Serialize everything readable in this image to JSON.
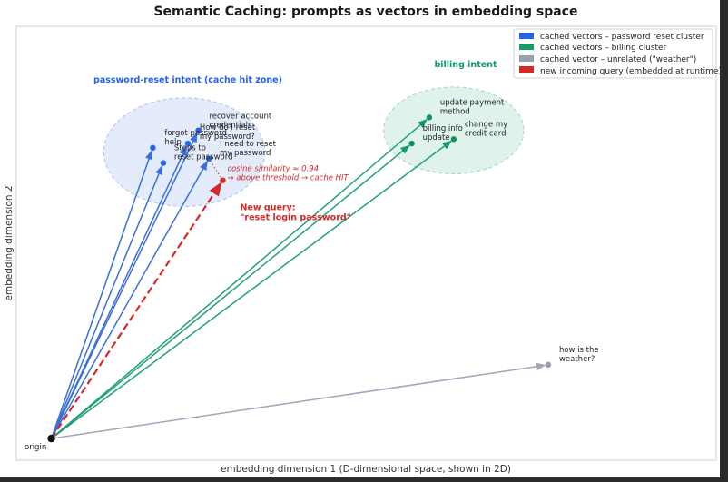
{
  "chart_data": {
    "type": "scatter",
    "title": "Semantic Caching: prompts as vectors in embedding space",
    "xlabel": "embedding dimension 1  (D-dimensional space, shown in 2D)",
    "ylabel": "embedding dimension 2",
    "xlim": [
      0,
      100
    ],
    "ylim": [
      0,
      100
    ],
    "grid": false,
    "legend_position": "top-right",
    "origin": {
      "x": 5,
      "y": 5,
      "label": "origin"
    },
    "zones": [
      {
        "name": "password-reset intent  (cache hit zone)",
        "color": "#2563eb",
        "cx": 24,
        "cy": 71,
        "rx": 11.5,
        "ry": 12.5
      },
      {
        "name": "billing intent",
        "color": "#0e9f6e",
        "cx": 62.5,
        "cy": 76,
        "rx": 10,
        "ry": 10
      }
    ],
    "legend": [
      {
        "label": "cached vectors – password reset cluster",
        "color": "#2563eb"
      },
      {
        "label": "cached vectors – billing cluster",
        "color": "#159a6e"
      },
      {
        "label": "cached vector – unrelated (\"weather\")",
        "color": "#9aa0ac"
      },
      {
        "label": "new incoming query (embedded at runtime)",
        "color": "#d62828"
      }
    ],
    "series": [
      {
        "name": "cached vectors – password reset cluster",
        "color": "#2563eb",
        "points": [
          {
            "x": 19.5,
            "y": 72,
            "label": "forgot password help",
            "lines": [
              "forgot password",
              "help"
            ],
            "dx": 14,
            "dy": -24
          },
          {
            "x": 21,
            "y": 68.5,
            "label": "Steps to reset password",
            "lines": [
              "Steps to",
              "reset password"
            ],
            "dx": 13,
            "dy": -24
          },
          {
            "x": 24.5,
            "y": 73,
            "label": "How do I reset my password?",
            "lines": [
              "How do I reset",
              "my password?"
            ],
            "dx": 14,
            "dy": -25
          },
          {
            "x": 26,
            "y": 76,
            "label": "recover account credentials",
            "lines": [
              "recover account",
              "credentials"
            ],
            "dx": 13,
            "dy": -23
          },
          {
            "x": 27.5,
            "y": 69.5,
            "label": "I need to reset my password",
            "lines": [
              "I need to reset",
              "my password"
            ],
            "dx": 13,
            "dy": -24
          }
        ]
      },
      {
        "name": "cached vectors – billing cluster",
        "color": "#159a6e",
        "points": [
          {
            "x": 59,
            "y": 79,
            "label": "update payment method",
            "lines": [
              "update payment",
              "method"
            ],
            "dx": 13,
            "dy": -24
          },
          {
            "x": 56.5,
            "y": 73,
            "label": "billing info update",
            "lines": [
              "billing info",
              "update"
            ],
            "dx": 13,
            "dy": -24
          },
          {
            "x": 62.5,
            "y": 74,
            "label": "change my credit card",
            "lines": [
              "change my",
              "credit card"
            ],
            "dx": 13,
            "dy": -24
          }
        ]
      },
      {
        "name": "cached vector – unrelated (\"weather\")",
        "color": "#9aa0ac",
        "points": [
          {
            "x": 76,
            "y": 22,
            "label": "how is the weather?",
            "lines": [
              "how is the",
              "weather?"
            ],
            "dx": 13,
            "dy": -24
          }
        ]
      }
    ],
    "query": {
      "x": 29.5,
      "y": 64.5,
      "color": "#d62828",
      "label": "New query: \"reset login password\"",
      "label_lines": [
        "New query:",
        "\"reset login password\""
      ],
      "nearest_index": 4,
      "similarity_text": "cosine similarity ≈ 0.94",
      "threshold_text": "→ above threshold → cache HIT"
    }
  }
}
